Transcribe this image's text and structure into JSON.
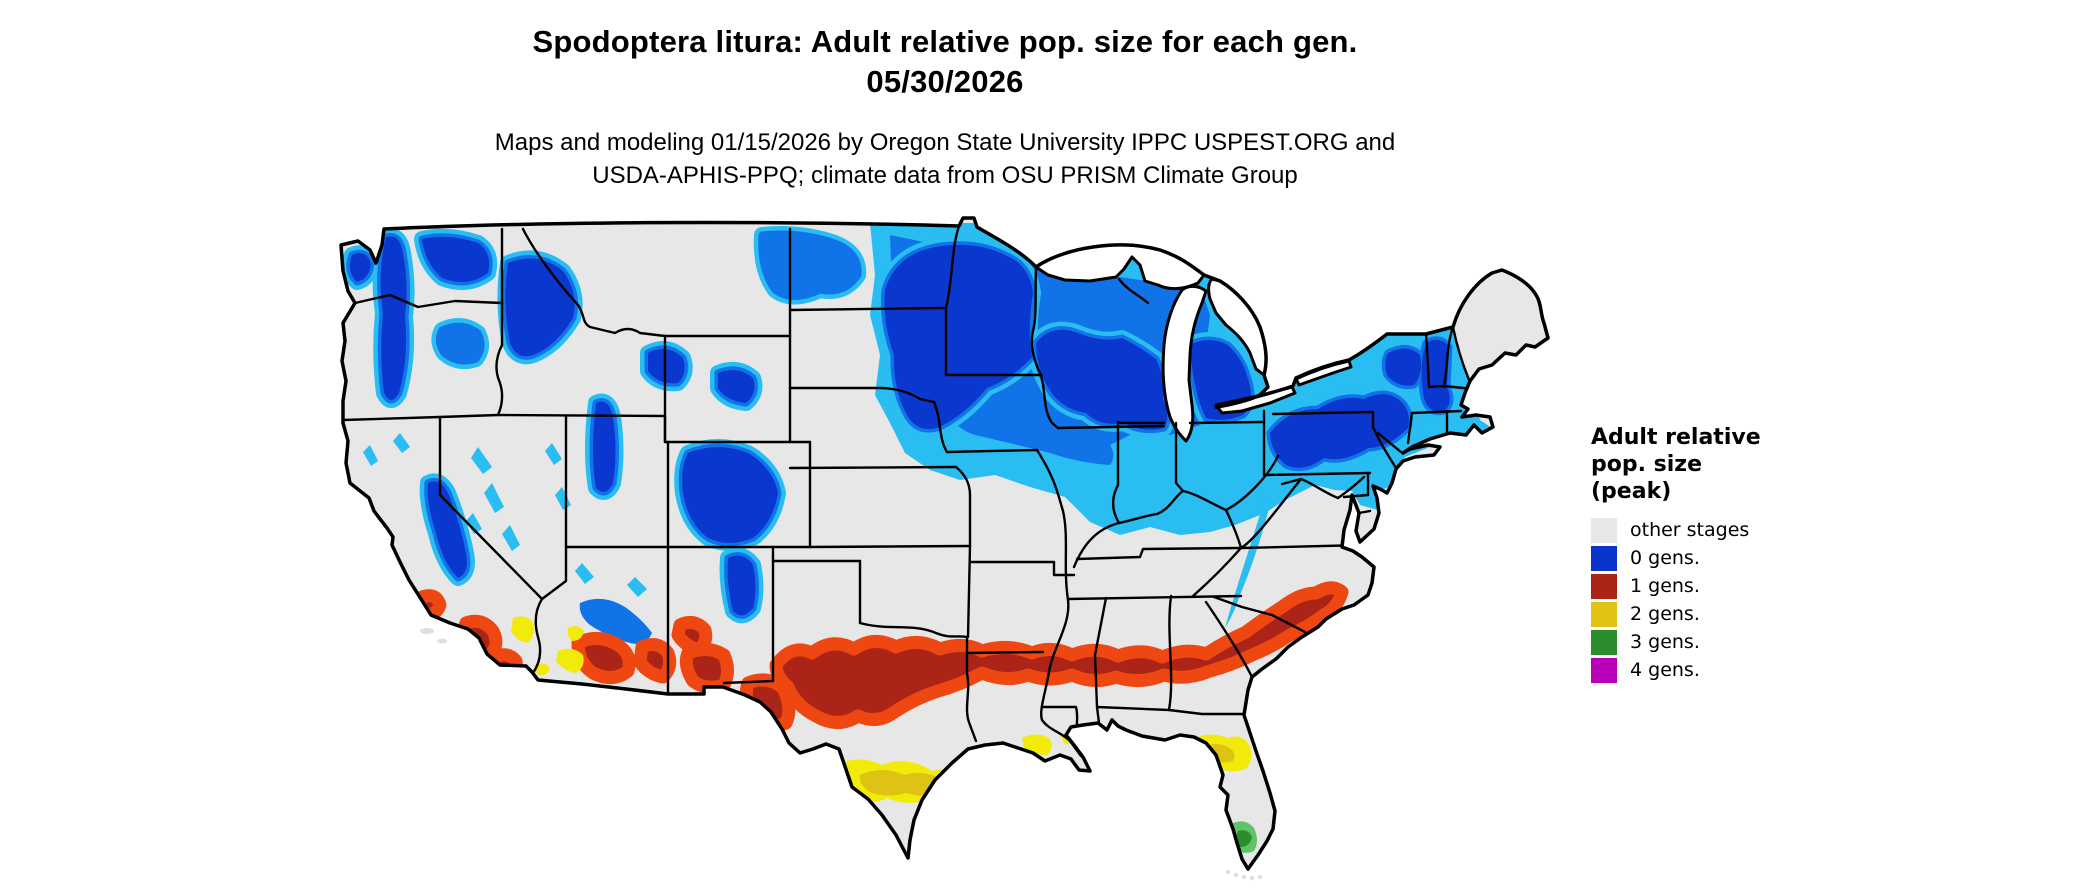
{
  "title": {
    "line1": "Spodoptera litura: Adult relative pop. size for each gen.",
    "date_line": "05/30/2026"
  },
  "subtitle": {
    "line1": "Maps and modeling 01/15/2026 by Oregon State University IPPC USPEST.ORG and",
    "line2": "USDA-APHIS-PPQ; climate data from OSU PRISM Climate Group"
  },
  "legend": {
    "title_lines": [
      "Adult relative",
      "pop. size",
      "(peak)"
    ],
    "items": [
      {
        "label": "other stages",
        "color": "#e7e7e7"
      },
      {
        "label": "0 gens.",
        "color": "#0a35cd"
      },
      {
        "label": "1 gens.",
        "color": "#ab2417"
      },
      {
        "label": "2 gens.",
        "color": "#dfc312"
      },
      {
        "label": "3 gens.",
        "color": "#2b8c2b"
      },
      {
        "label": "4 gens.",
        "color": "#b800b8"
      }
    ]
  },
  "map": {
    "region": "Continental United States",
    "palette": {
      "other_stages": "#e7e7e7",
      "gen0_low": "#29bdf2",
      "gen0_mid": "#1173e8",
      "gen0_high": "#0a38cf",
      "gen1_low": "#ee4711",
      "gen1_high": "#ab2417",
      "gen2_low": "#f2ea0a",
      "gen2_high": "#dfc312",
      "gen3_low": "#5fc36a",
      "gen3_high": "#2b8c2b",
      "water": "#ffffff",
      "border": "#000000"
    }
  }
}
